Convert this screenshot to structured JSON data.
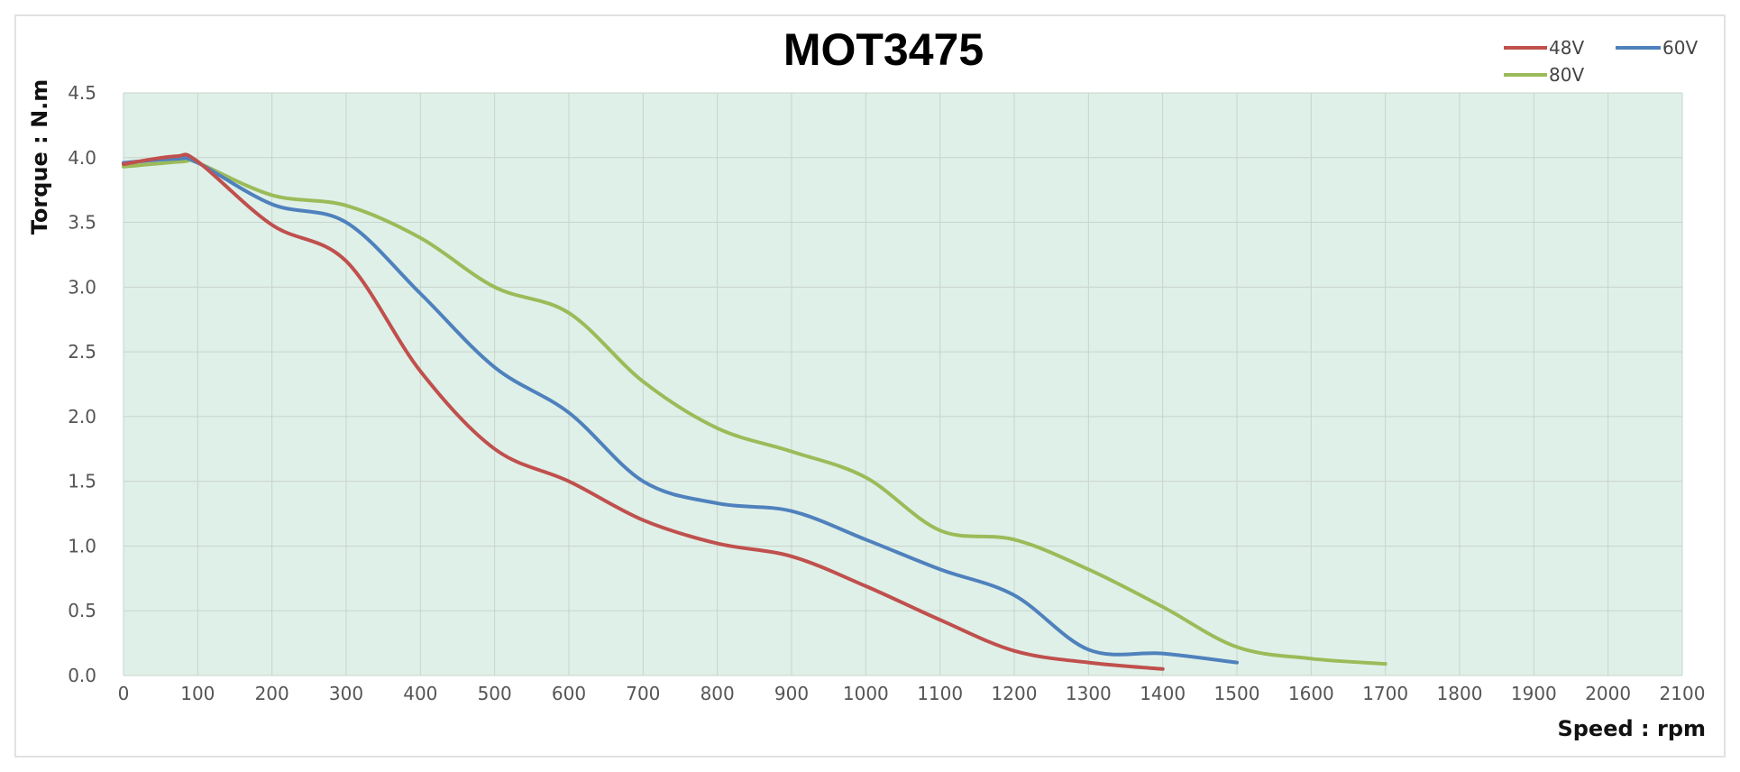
{
  "chart_data": {
    "type": "line",
    "title": "MOT3475",
    "xlabel": "Speed : rpm",
    "ylabel": "Torque : N.m",
    "xlim": [
      0,
      2100
    ],
    "ylim": [
      0,
      4.5
    ],
    "x_ticks": [
      "0",
      "100",
      "200",
      "300",
      "400",
      "500",
      "600",
      "700",
      "800",
      "900",
      "1000",
      "1100",
      "1200",
      "1300",
      "1400",
      "1500",
      "1600",
      "1700",
      "1800",
      "1900",
      "2000",
      "2100"
    ],
    "y_ticks": [
      "0.0",
      "0.5",
      "1.0",
      "1.5",
      "2.0",
      "2.5",
      "3.0",
      "3.5",
      "4.0",
      "4.5"
    ],
    "grid": true,
    "legend_position": "top-right",
    "plot_background": "#dff0e8",
    "grid_color": "#c8d4cc",
    "series": [
      {
        "name": "48V",
        "color": "#c0504d",
        "x": [
          0,
          70,
          100,
          200,
          300,
          400,
          500,
          600,
          700,
          800,
          900,
          1000,
          1100,
          1200,
          1300,
          1400
        ],
        "y": [
          3.95,
          4.01,
          3.97,
          3.48,
          3.2,
          2.35,
          1.75,
          1.5,
          1.2,
          1.02,
          0.92,
          0.69,
          0.43,
          0.19,
          0.1,
          0.05
        ]
      },
      {
        "name": "60V",
        "color": "#4f81bd",
        "x": [
          0,
          70,
          100,
          200,
          300,
          400,
          500,
          600,
          700,
          800,
          900,
          1000,
          1100,
          1200,
          1300,
          1400,
          1500
        ],
        "y": [
          3.96,
          3.99,
          3.96,
          3.64,
          3.5,
          2.95,
          2.38,
          2.03,
          1.5,
          1.33,
          1.27,
          1.05,
          0.82,
          0.62,
          0.2,
          0.17,
          0.1
        ]
      },
      {
        "name": "80V",
        "color": "#9bbb59",
        "x": [
          0,
          80,
          100,
          200,
          300,
          400,
          500,
          600,
          700,
          800,
          900,
          1000,
          1100,
          1200,
          1300,
          1400,
          1500,
          1600,
          1700
        ],
        "y": [
          3.93,
          3.97,
          3.96,
          3.71,
          3.63,
          3.38,
          3.0,
          2.8,
          2.27,
          1.91,
          1.73,
          1.53,
          1.12,
          1.05,
          0.82,
          0.53,
          0.22,
          0.13,
          0.09
        ]
      }
    ]
  }
}
